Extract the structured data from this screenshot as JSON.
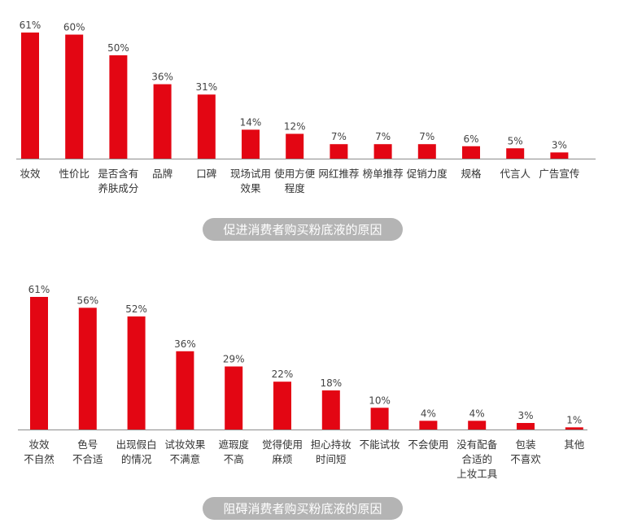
{
  "colors": {
    "bar": "#e30613",
    "axis": "#8c8c8c",
    "pill": "#b4b4b4",
    "pill_text": "#ffffff"
  },
  "chart_data": [
    {
      "type": "bar",
      "title": "促进消费者购买粉底液的原因",
      "categories": [
        [
          "妆效"
        ],
        [
          "性价比"
        ],
        [
          "是否含有",
          "养肤成分"
        ],
        [
          "品牌"
        ],
        [
          "口碑"
        ],
        [
          "现场试用",
          "效果"
        ],
        [
          "使用方便",
          "程度"
        ],
        [
          "网红推荐"
        ],
        [
          "榜单推荐"
        ],
        [
          "促销力度"
        ],
        [
          "规格"
        ],
        [
          "代言人"
        ],
        [
          "广告宣传"
        ]
      ],
      "values": [
        61,
        60,
        50,
        36,
        31,
        14,
        12,
        7,
        7,
        7,
        6,
        5,
        3
      ],
      "value_labels": [
        "61%",
        "60%",
        "50%",
        "36%",
        "31%",
        "14%",
        "12%",
        "7%",
        "7%",
        "7%",
        "6%",
        "5%",
        "3%"
      ],
      "unit": "%",
      "grid": false
    },
    {
      "type": "bar",
      "title": "阻碍消费者购买粉底液的原因",
      "categories": [
        [
          "妆效",
          "不自然"
        ],
        [
          "色号",
          "不合适"
        ],
        [
          "出现假白",
          "的情况"
        ],
        [
          "试妆效果",
          "不满意"
        ],
        [
          "遮瑕度",
          "不高"
        ],
        [
          "觉得使用",
          "麻烦"
        ],
        [
          "担心持妆",
          "时间短"
        ],
        [
          "不能试妆"
        ],
        [
          "不会使用"
        ],
        [
          "没有配备",
          "合适的",
          "上妆工具"
        ],
        [
          "包装",
          "不喜欢"
        ],
        [
          "其他"
        ]
      ],
      "values": [
        61,
        56,
        52,
        36,
        29,
        22,
        18,
        10,
        4,
        4,
        3,
        1
      ],
      "value_labels": [
        "61%",
        "56%",
        "52%",
        "36%",
        "29%",
        "22%",
        "18%",
        "10%",
        "4%",
        "4%",
        "3%",
        "1%"
      ],
      "unit": "%",
      "grid": false
    }
  ]
}
